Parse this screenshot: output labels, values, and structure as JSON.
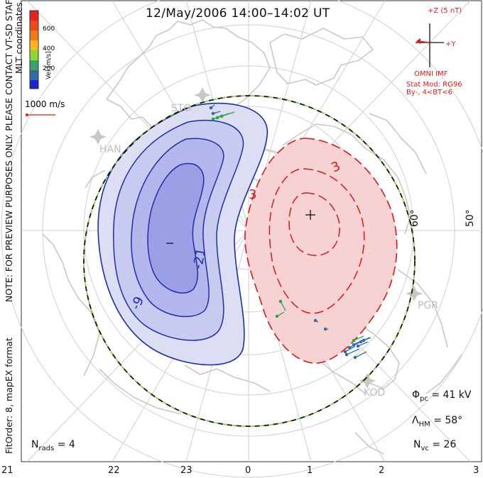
{
  "title": "12/May/2006 14:00–14:02 UT",
  "coordinates_label": "MLT coordinates",
  "colorbar": {
    "label": "Vel [m/s]",
    "ticks": [
      "600",
      "400",
      "200"
    ],
    "colors": [
      "#e8211b",
      "#f27a1c",
      "#f7b91d",
      "#8cd63a",
      "#34a86a",
      "#2f6fa6",
      "#2a3fc8",
      "#1f22d8"
    ]
  },
  "vector_scale_label": "1000 m/s",
  "notes": {
    "preview": "NOTE: FOR PREVIEW PURPOSES ONLY. PLEASE CONTACT VT-SD STAFF FOR VERIFICATION.",
    "fit": "FitOrder: 8, mapEX format"
  },
  "imf": {
    "z_label": "+Z (5 nT)",
    "y_label": "+Y",
    "source": "OMNI IMF",
    "model": "Stat Mod: RG96",
    "condition": "By-, 4<BT<6"
  },
  "mlt_labels": [
    "21",
    "22",
    "23",
    "0",
    "1",
    "2",
    "3"
  ],
  "latitude_labels": [
    "60°",
    "50°"
  ],
  "stations": [
    "STO",
    "HAN",
    "PGR",
    "KOD"
  ],
  "contour_labels": [
    "-21",
    "-9",
    "3",
    "3"
  ],
  "extrema": {
    "min_marker": "–",
    "max_marker": "+"
  },
  "stats": {
    "phi_pc": {
      "symbol": "Φ",
      "sub": "pc",
      "value": "= 41 kV"
    },
    "lambda_hm": {
      "symbol": "Λ",
      "sub": "HM",
      "value": "= 58°"
    },
    "n_vc": {
      "symbol": "N",
      "sub": "vc",
      "value": "= 26"
    },
    "n_rads": {
      "symbol": "N",
      "sub": "rads",
      "value": "= 4"
    }
  },
  "colors": {
    "negative_cell_fill": "#c5c8ee",
    "negative_cell_core": "#9a9fe6",
    "negative_line": "#1d2fa8",
    "positive_cell_fill": "#f6d2d2",
    "positive_line": "#d21b1b",
    "boundary_green": "#7fd04a",
    "coastline": "#c8c8c8",
    "grid": "#cfcfcf"
  }
}
